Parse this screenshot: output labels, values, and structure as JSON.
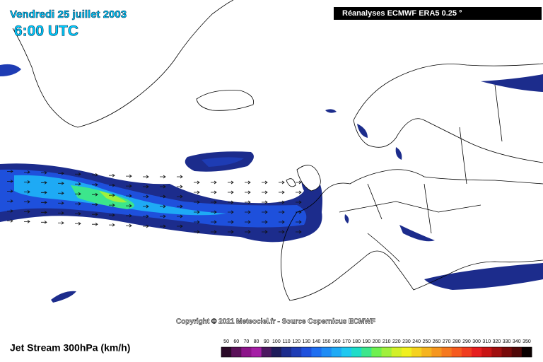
{
  "header": {
    "date": "Vendredi 25 juillet 2003",
    "time": "6:00 UTC",
    "source": "Réanalyses ECMWF ERA5 0.25 °"
  },
  "copyright": "Copyright © 2021 Meteociel.fr - Source Copernicus ECMWF",
  "legend": {
    "title": "Jet Stream 300hPa (km/h)",
    "stops": [
      {
        "value": 50,
        "color": "#2a0a28"
      },
      {
        "value": 60,
        "color": "#5a1058"
      },
      {
        "value": 70,
        "color": "#8c1489"
      },
      {
        "value": 80,
        "color": "#a51ea5"
      },
      {
        "value": 90,
        "color": "#4c1860"
      },
      {
        "value": 100,
        "color": "#1e1c5a"
      },
      {
        "value": 110,
        "color": "#1c2c8c"
      },
      {
        "value": 120,
        "color": "#1e3cb4"
      },
      {
        "value": 130,
        "color": "#1e50dc"
      },
      {
        "value": 140,
        "color": "#1e6ef0"
      },
      {
        "value": 150,
        "color": "#1e8cf5"
      },
      {
        "value": 160,
        "color": "#1eaaf5"
      },
      {
        "value": 170,
        "color": "#1ec8f0"
      },
      {
        "value": 180,
        "color": "#1edcc8"
      },
      {
        "value": 190,
        "color": "#3ce68c"
      },
      {
        "value": 200,
        "color": "#6ef050"
      },
      {
        "value": 210,
        "color": "#a0f03c"
      },
      {
        "value": 220,
        "color": "#d2f028"
      },
      {
        "value": 230,
        "color": "#f0f01e"
      },
      {
        "value": 240,
        "color": "#f5d21e"
      },
      {
        "value": 250,
        "color": "#f5b41e"
      },
      {
        "value": 260,
        "color": "#f5961e"
      },
      {
        "value": 270,
        "color": "#f5781e"
      },
      {
        "value": 280,
        "color": "#f55a1e"
      },
      {
        "value": 290,
        "color": "#f03c1e"
      },
      {
        "value": 300,
        "color": "#e61e1e"
      },
      {
        "value": 310,
        "color": "#c81414"
      },
      {
        "value": 320,
        "color": "#a00f0f"
      },
      {
        "value": 330,
        "color": "#780a0a"
      },
      {
        "value": 340,
        "color": "#500808"
      },
      {
        "value": 350,
        "color": "#0a0000"
      }
    ]
  }
}
